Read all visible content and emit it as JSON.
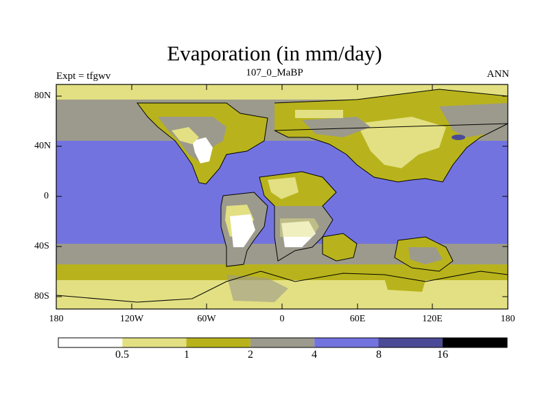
{
  "title": "Evaporation (in mm/day)",
  "subtitle_left": "Expt = tfgwv",
  "subtitle_center": "107_0_MaBP",
  "subtitle_right": "ANN",
  "lat_labels": [
    "80N",
    "40N",
    "0",
    "40S",
    "80S"
  ],
  "lon_labels": [
    "180",
    "120W",
    "60W",
    "0",
    "60E",
    "120E",
    "180"
  ],
  "colorbar": {
    "bins": [
      "< 0.5",
      "0.5-1",
      "1-2",
      "2-4",
      "4-8",
      "8-16",
      "> 16"
    ],
    "colors": [
      "#ffffff",
      "#e2e082",
      "#b8b31c",
      "#9c9a8c",
      "#7373e0",
      "#4a4a96",
      "#000000"
    ],
    "tick_labels": [
      "0.5",
      "1",
      "2",
      "4",
      "8",
      "16"
    ]
  }
}
